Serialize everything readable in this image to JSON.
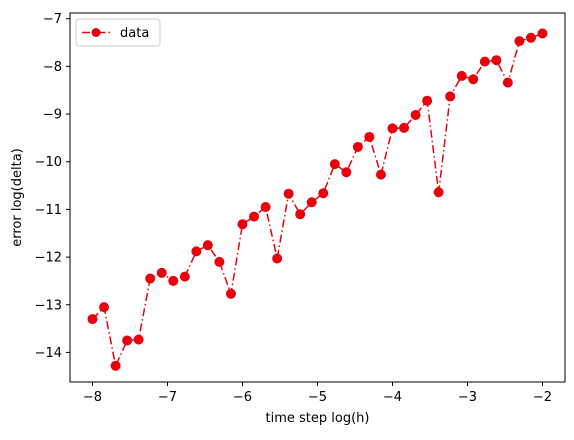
{
  "chart_data": {
    "type": "line",
    "xlabel": "time step log(h)",
    "ylabel": "error log(delta)",
    "xlim": [
      -8.3,
      -1.7
    ],
    "ylim": [
      -14.62,
      -6.88
    ],
    "xticks": [
      {
        "value": -8,
        "label": "−8"
      },
      {
        "value": -7,
        "label": "−7"
      },
      {
        "value": -6,
        "label": "−6"
      },
      {
        "value": -5,
        "label": "−5"
      },
      {
        "value": -4,
        "label": "−4"
      },
      {
        "value": -3,
        "label": "−3"
      },
      {
        "value": -2,
        "label": "−2"
      }
    ],
    "yticks": [
      {
        "value": -14,
        "label": "−14"
      },
      {
        "value": -13,
        "label": "−13"
      },
      {
        "value": -12,
        "label": "−12"
      },
      {
        "value": -11,
        "label": "−11"
      },
      {
        "value": -10,
        "label": "−10"
      },
      {
        "value": -9,
        "label": "−9"
      },
      {
        "value": -8,
        "label": "−8"
      },
      {
        "value": -7,
        "label": "−7"
      }
    ],
    "grid": false,
    "legend": {
      "position": "top-left",
      "entries": [
        "data"
      ]
    },
    "series": [
      {
        "name": "data",
        "color": "#e8000b",
        "line_style": "dashdot",
        "marker": "circle",
        "x": [
          -8.0,
          -7.846,
          -7.692,
          -7.538,
          -7.385,
          -7.231,
          -7.077,
          -6.923,
          -6.769,
          -6.615,
          -6.462,
          -6.308,
          -6.154,
          -6.0,
          -5.846,
          -5.692,
          -5.538,
          -5.385,
          -5.231,
          -5.077,
          -4.923,
          -4.769,
          -4.615,
          -4.462,
          -4.308,
          -4.154,
          -4.0,
          -3.846,
          -3.692,
          -3.538,
          -3.385,
          -3.231,
          -3.077,
          -2.923,
          -2.769,
          -2.615,
          -2.462,
          -2.308,
          -2.154,
          -2.0
        ],
        "y": [
          -13.3,
          -13.05,
          -14.28,
          -13.75,
          -13.73,
          -12.45,
          -12.33,
          -12.5,
          -12.41,
          -11.88,
          -11.75,
          -12.1,
          -12.77,
          -11.31,
          -11.15,
          -10.95,
          -12.03,
          -10.67,
          -11.1,
          -10.85,
          -10.66,
          -10.05,
          -10.22,
          -9.69,
          -9.48,
          -10.27,
          -9.3,
          -9.29,
          -9.02,
          -8.72,
          -10.64,
          -8.63,
          -8.2,
          -8.27,
          -7.9,
          -7.87,
          -8.34,
          -7.47,
          -7.4,
          -7.31
        ]
      }
    ]
  }
}
